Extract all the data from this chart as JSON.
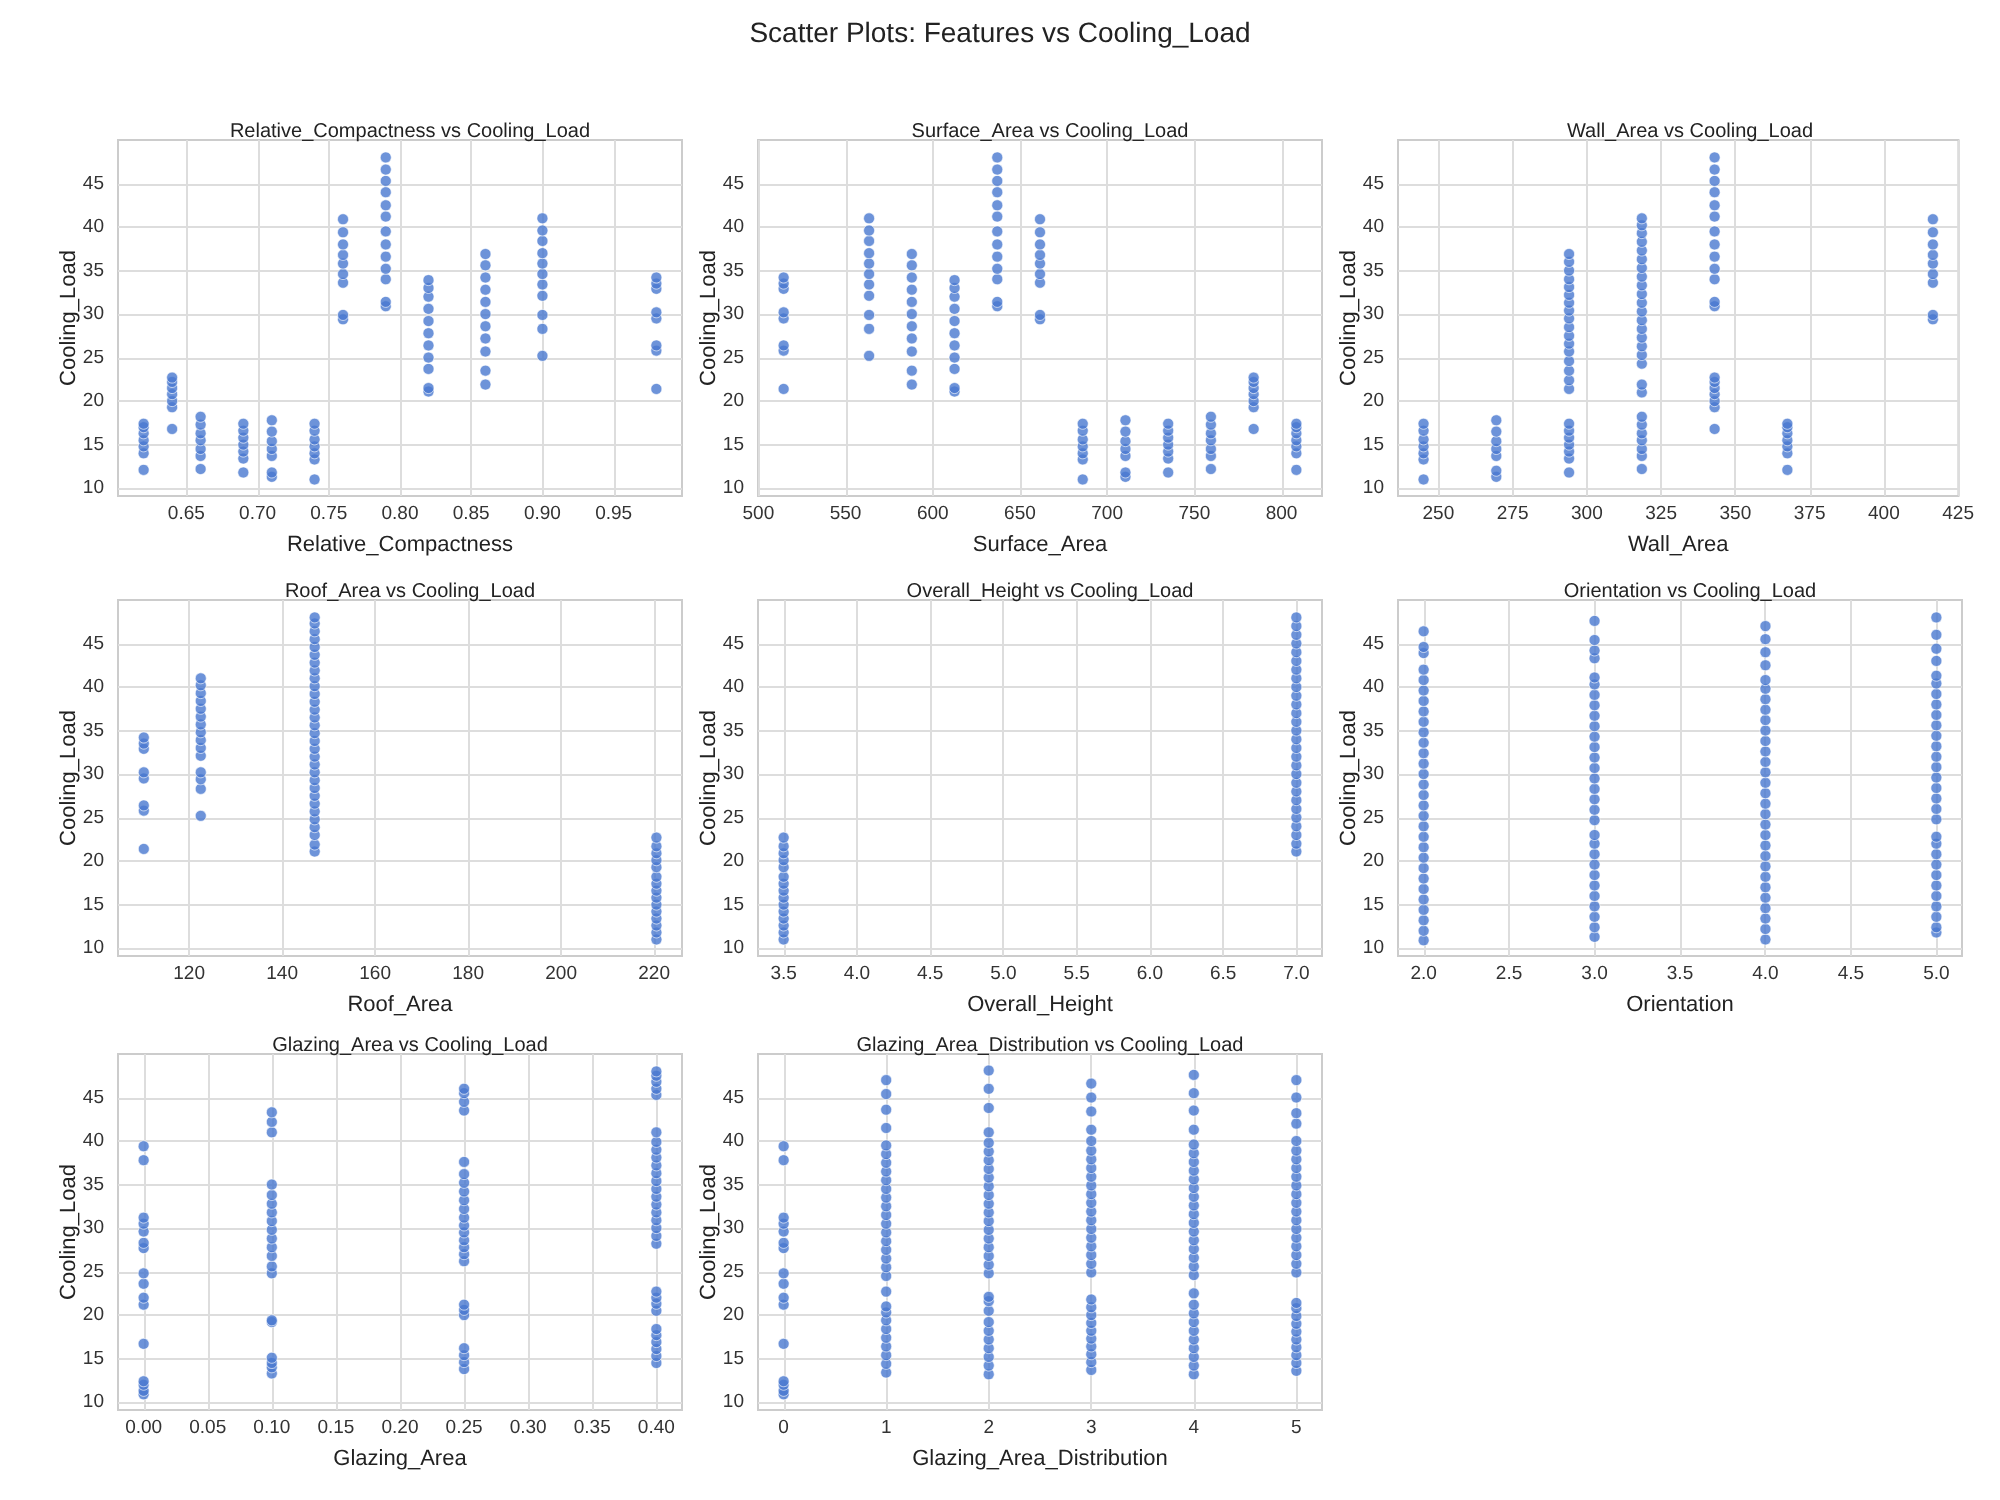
{
  "chart_data": [
    {
      "type": "other",
      "title": "Scatter Plots: Features vs Cooling_Load"
    },
    {
      "type": "scatter",
      "title": "Relative_Compactness vs Cooling_Load",
      "xlabel": "Relative_Compactness",
      "ylabel": "Cooling_Load",
      "color": "#4878d0",
      "marker": "circle",
      "grid": true,
      "xlim": [
        0.602,
        0.998
      ],
      "ylim": [
        9.1,
        50
      ],
      "xticks": [
        0.65,
        {
          "value": 0.7,
          "label": "0.70"
        },
        0.75,
        {
          "value": 0.8,
          "label": "0.80"
        },
        0.85,
        {
          "value": 0.9,
          "label": "0.90"
        },
        0.95
      ],
      "yticks": [
        10,
        15,
        20,
        25,
        30,
        35,
        40,
        45
      ],
      "x": [
        0.62,
        0.62,
        0.62,
        0.62,
        0.62,
        0.62,
        0.62,
        0.64,
        0.64,
        0.64,
        0.64,
        0.64,
        0.64,
        0.64,
        0.66,
        0.66,
        0.66,
        0.66,
        0.66,
        0.66,
        0.66,
        0.69,
        0.69,
        0.69,
        0.69,
        0.69,
        0.69,
        0.69,
        0.71,
        0.71,
        0.71,
        0.71,
        0.71,
        0.71,
        0.71,
        0.74,
        0.74,
        0.74,
        0.74,
        0.74,
        0.74,
        0.74,
        0.76,
        0.76,
        0.76,
        0.76,
        0.76,
        0.76,
        0.76,
        0.76,
        0.76,
        0.79,
        0.79,
        0.79,
        0.79,
        0.79,
        0.79,
        0.79,
        0.79,
        0.79,
        0.79,
        0.79,
        0.79,
        0.79,
        0.82,
        0.82,
        0.82,
        0.82,
        0.82,
        0.82,
        0.82,
        0.82,
        0.82,
        0.82,
        0.82,
        0.86,
        0.86,
        0.86,
        0.86,
        0.86,
        0.86,
        0.86,
        0.86,
        0.86,
        0.86,
        0.86,
        0.9,
        0.9,
        0.9,
        0.9,
        0.9,
        0.9,
        0.9,
        0.9,
        0.9,
        0.9,
        0.9,
        0.98,
        0.98,
        0.98,
        0.98,
        0.98,
        0.98,
        0.98,
        0.98
      ],
      "values": [
        12.1,
        14.0,
        14.8,
        15.5,
        16.3,
        17.0,
        17.4,
        16.8,
        19.3,
        20.0,
        20.8,
        21.5,
        22.2,
        22.7,
        12.2,
        13.7,
        14.5,
        15.5,
        16.3,
        17.3,
        18.2,
        11.8,
        13.4,
        14.2,
        15.0,
        15.8,
        16.6,
        17.4,
        11.3,
        11.8,
        13.7,
        14.5,
        15.4,
        16.5,
        17.8,
        11.0,
        13.3,
        14.0,
        14.8,
        15.6,
        16.6,
        17.4,
        29.4,
        29.9,
        33.6,
        34.6,
        35.8,
        36.8,
        38.0,
        39.4,
        40.9,
        30.9,
        31.4,
        34.0,
        35.2,
        36.6,
        38.0,
        39.5,
        41.2,
        42.5,
        44.0,
        45.3,
        46.6,
        48.0,
        21.1,
        21.5,
        23.7,
        25.0,
        26.4,
        27.8,
        29.2,
        30.6,
        32.0,
        33.0,
        33.9,
        21.9,
        23.5,
        25.7,
        27.2,
        28.6,
        30.0,
        31.4,
        32.8,
        34.2,
        35.6,
        36.9,
        25.2,
        28.3,
        29.9,
        32.1,
        33.4,
        34.6,
        35.8,
        37.0,
        38.4,
        39.6,
        41.0,
        21.4,
        25.8,
        26.4,
        29.5,
        30.2,
        32.9,
        33.5,
        34.2
      ]
    },
    {
      "type": "scatter",
      "title": "Surface_Area vs Cooling_Load",
      "xlabel": "Surface_Area",
      "ylabel": "Cooling_Load",
      "color": "#4878d0",
      "marker": "circle",
      "grid": true,
      "xlim": [
        499.8,
        823.2
      ],
      "ylim": [
        9.1,
        50
      ],
      "xticks": [
        500,
        550,
        600,
        650,
        700,
        750,
        800
      ],
      "yticks": [
        10,
        15,
        20,
        25,
        30,
        35,
        40,
        45
      ],
      "x": [
        514.5,
        514.5,
        514.5,
        514.5,
        514.5,
        514.5,
        514.5,
        514.5,
        563.5,
        563.5,
        563.5,
        563.5,
        563.5,
        563.5,
        563.5,
        563.5,
        563.5,
        563.5,
        563.5,
        588,
        588,
        588,
        588,
        588,
        588,
        588,
        588,
        588,
        588,
        588,
        612.5,
        612.5,
        612.5,
        612.5,
        612.5,
        612.5,
        612.5,
        612.5,
        612.5,
        612.5,
        612.5,
        637,
        637,
        637,
        637,
        637,
        637,
        637,
        637,
        637,
        637,
        637,
        637,
        637,
        661.5,
        661.5,
        661.5,
        661.5,
        661.5,
        661.5,
        661.5,
        661.5,
        661.5,
        686,
        686,
        686,
        686,
        686,
        686,
        686,
        710.5,
        710.5,
        710.5,
        710.5,
        710.5,
        710.5,
        710.5,
        735,
        735,
        735,
        735,
        735,
        735,
        735,
        759.5,
        759.5,
        759.5,
        759.5,
        759.5,
        759.5,
        759.5,
        784,
        784,
        784,
        784,
        784,
        784,
        784,
        808.5,
        808.5,
        808.5,
        808.5,
        808.5,
        808.5,
        808.5
      ],
      "values": [
        21.4,
        25.8,
        26.4,
        29.5,
        30.2,
        32.9,
        33.5,
        34.2,
        25.2,
        28.3,
        29.9,
        32.1,
        33.4,
        34.6,
        35.8,
        37.0,
        38.4,
        39.6,
        41.0,
        21.9,
        23.5,
        25.7,
        27.2,
        28.6,
        30.0,
        31.4,
        32.8,
        34.2,
        35.6,
        36.9,
        21.1,
        21.5,
        23.7,
        25.0,
        26.4,
        27.8,
        29.2,
        30.6,
        32.0,
        33.0,
        33.9,
        30.9,
        31.4,
        34.0,
        35.2,
        36.6,
        38.0,
        39.5,
        41.2,
        42.5,
        44.0,
        45.3,
        46.6,
        48.0,
        29.4,
        29.9,
        33.6,
        34.6,
        35.8,
        36.8,
        38.0,
        39.4,
        40.9,
        11.0,
        13.3,
        14.0,
        14.8,
        15.6,
        16.6,
        17.4,
        11.3,
        11.8,
        13.7,
        14.5,
        15.4,
        16.5,
        17.8,
        11.8,
        13.4,
        14.2,
        15.0,
        15.8,
        16.6,
        17.4,
        12.2,
        13.7,
        14.5,
        15.5,
        16.3,
        17.3,
        18.2,
        16.8,
        19.3,
        20.0,
        20.8,
        21.5,
        22.2,
        22.7,
        12.1,
        14.0,
        14.8,
        15.5,
        16.3,
        17.0,
        17.4
      ]
    },
    {
      "type": "scatter",
      "title": "Wall_Area vs Cooling_Load",
      "xlabel": "Wall_Area",
      "ylabel": "Cooling_Load",
      "color": "#4878d0",
      "marker": "circle",
      "grid": true,
      "xlim": [
        236.4,
        425.1
      ],
      "ylim": [
        9.1,
        50
      ],
      "xticks": [
        250,
        275,
        300,
        325,
        350,
        375,
        400,
        425
      ],
      "yticks": [
        10,
        15,
        20,
        25,
        30,
        35,
        40,
        45
      ],
      "x": [
        245,
        245,
        245,
        245,
        245,
        245,
        245,
        269.5,
        269.5,
        269.5,
        269.5,
        269.5,
        269.5,
        269.5,
        294,
        294,
        294,
        294,
        294,
        294,
        294,
        294,
        294,
        294,
        294,
        294,
        294,
        294,
        294,
        294,
        294,
        294,
        294,
        294,
        294,
        294,
        294,
        294,
        318.5,
        318.5,
        318.5,
        318.5,
        318.5,
        318.5,
        318.5,
        318.5,
        318.5,
        318.5,
        318.5,
        318.5,
        318.5,
        318.5,
        318.5,
        318.5,
        318.5,
        318.5,
        318.5,
        318.5,
        318.5,
        318.5,
        318.5,
        318.5,
        318.5,
        318.5,
        318.5,
        343,
        343,
        343,
        343,
        343,
        343,
        343,
        343,
        343,
        343,
        343,
        343,
        343,
        343,
        343,
        343,
        343,
        343,
        343,
        343,
        367.5,
        367.5,
        367.5,
        367.5,
        367.5,
        367.5,
        367.5,
        416.5,
        416.5,
        416.5,
        416.5,
        416.5,
        416.5,
        416.5,
        416.5,
        416.5
      ],
      "values": [
        11.0,
        13.3,
        14.0,
        14.8,
        15.6,
        16.6,
        17.4,
        11.3,
        12.0,
        13.7,
        14.5,
        15.4,
        16.5,
        17.8,
        11.8,
        13.4,
        14.2,
        15.0,
        15.8,
        16.6,
        17.4,
        21.4,
        22.4,
        23.5,
        24.6,
        25.7,
        26.6,
        27.5,
        28.5,
        29.5,
        30.4,
        31.3,
        32.2,
        33.1,
        34.0,
        35.0,
        36.0,
        36.9,
        12.2,
        13.7,
        14.5,
        15.5,
        16.3,
        17.3,
        18.2,
        21.0,
        21.9,
        24.3,
        25.3,
        26.3,
        27.3,
        28.3,
        29.3,
        30.3,
        31.3,
        32.3,
        33.3,
        34.3,
        35.3,
        36.3,
        37.3,
        38.3,
        39.3,
        40.2,
        41.0,
        16.8,
        19.3,
        20.0,
        20.8,
        21.5,
        22.2,
        22.7,
        30.9,
        31.4,
        34.0,
        35.2,
        36.6,
        38.0,
        39.5,
        41.2,
        42.5,
        44.0,
        45.3,
        46.6,
        48.0,
        12.1,
        14.0,
        14.8,
        15.5,
        16.3,
        17.0,
        17.4,
        29.4,
        29.9,
        33.6,
        34.6,
        35.8,
        36.8,
        38.0,
        39.4,
        40.9
      ]
    },
    {
      "type": "scatter",
      "title": "Roof_Area vs Cooling_Load",
      "xlabel": "Roof_Area",
      "ylabel": "Cooling_Load",
      "color": "#4878d0",
      "marker": "circle",
      "grid": true,
      "xlim": [
        104.7,
        226
      ],
      "ylim": [
        9.1,
        50
      ],
      "xticks": [
        120,
        140,
        160,
        180,
        200,
        220
      ],
      "yticks": [
        10,
        15,
        20,
        25,
        30,
        35,
        40,
        45
      ],
      "x": [
        110.25,
        110.25,
        110.25,
        110.25,
        110.25,
        110.25,
        110.25,
        110.25,
        122.5,
        122.5,
        122.5,
        122.5,
        122.5,
        122.5,
        122.5,
        122.5,
        122.5,
        122.5,
        122.5,
        122.5,
        122.5,
        122.5,
        122.5,
        147,
        147,
        147,
        147,
        147,
        147,
        147,
        147,
        147,
        147,
        147,
        147,
        147,
        147,
        147,
        147,
        147,
        147,
        147,
        147,
        147,
        147,
        147,
        147,
        147,
        147,
        147,
        147,
        147,
        147,
        147,
        220.5,
        220.5,
        220.5,
        220.5,
        220.5,
        220.5,
        220.5,
        220.5,
        220.5,
        220.5,
        220.5,
        220.5,
        220.5,
        220.5,
        220.5
      ],
      "values": [
        21.4,
        25.8,
        26.4,
        29.5,
        30.2,
        32.9,
        33.5,
        34.2,
        25.2,
        28.3,
        29.4,
        30.2,
        32.1,
        33.0,
        33.9,
        34.8,
        35.7,
        36.6,
        37.5,
        38.4,
        39.3,
        40.2,
        41.0,
        21.1,
        21.9,
        23.0,
        23.9,
        24.8,
        25.7,
        26.6,
        27.5,
        28.4,
        29.3,
        30.2,
        31.1,
        32.0,
        32.9,
        33.8,
        34.7,
        35.6,
        36.5,
        37.4,
        38.3,
        39.2,
        40.1,
        41.0,
        41.9,
        42.8,
        43.7,
        44.6,
        45.5,
        46.4,
        47.3,
        48.0,
        11.0,
        11.8,
        12.6,
        13.4,
        14.2,
        15.0,
        15.8,
        16.6,
        17.4,
        18.2,
        19.3,
        20.1,
        20.9,
        21.7,
        22.7
      ]
    },
    {
      "type": "scatter",
      "title": "Overall_Height vs Cooling_Load",
      "xlabel": "Overall_Height",
      "ylabel": "Cooling_Load",
      "color": "#4878d0",
      "marker": "circle",
      "grid": true,
      "xlim": [
        3.325,
        7.175
      ],
      "ylim": [
        9.1,
        50
      ],
      "xticks": [
        3.5,
        {
          "value": 4,
          "label": "4.0"
        },
        4.5,
        {
          "value": 5,
          "label": "5.0"
        },
        5.5,
        {
          "value": 6,
          "label": "6.0"
        },
        6.5,
        {
          "value": 7,
          "label": "7.0"
        }
      ],
      "yticks": [
        10,
        15,
        20,
        25,
        30,
        35,
        40,
        45
      ],
      "x": [
        3.5,
        3.5,
        3.5,
        3.5,
        3.5,
        3.5,
        3.5,
        3.5,
        3.5,
        3.5,
        3.5,
        3.5,
        3.5,
        3.5,
        3.5,
        7,
        7,
        7,
        7,
        7,
        7,
        7,
        7,
        7,
        7,
        7,
        7,
        7,
        7,
        7,
        7,
        7,
        7,
        7,
        7,
        7,
        7,
        7,
        7,
        7,
        7,
        7,
        7
      ],
      "values": [
        11.0,
        11.8,
        12.6,
        13.4,
        14.2,
        15.0,
        15.8,
        16.6,
        17.4,
        18.2,
        19.3,
        20.1,
        20.9,
        21.7,
        22.7,
        21.1,
        22.0,
        23.0,
        24.0,
        25.0,
        26.0,
        27.0,
        28.0,
        29.0,
        30.0,
        31.0,
        32.0,
        33.0,
        34.0,
        35.0,
        36.0,
        37.0,
        38.0,
        39.0,
        40.0,
        41.0,
        42.0,
        43.0,
        44.0,
        45.0,
        46.0,
        47.0,
        48.0
      ]
    },
    {
      "type": "scatter",
      "title": "Orientation vs Cooling_Load",
      "xlabel": "Orientation",
      "ylabel": "Cooling_Load",
      "color": "#4878d0",
      "marker": "circle",
      "grid": true,
      "xlim": [
        1.85,
        5.15
      ],
      "ylim": [
        9.1,
        50
      ],
      "xticks": [
        {
          "value": 2,
          "label": "2.0"
        },
        2.5,
        {
          "value": 3,
          "label": "3.0"
        },
        3.5,
        {
          "value": 4,
          "label": "4.0"
        },
        4.5,
        {
          "value": 5,
          "label": "5.0"
        }
      ],
      "yticks": [
        10,
        15,
        20,
        25,
        30,
        35,
        40,
        45
      ],
      "x": [
        2,
        2,
        2,
        2,
        2,
        2,
        2,
        2,
        2,
        2,
        2,
        2,
        2,
        2,
        2,
        2,
        2,
        2,
        2,
        2,
        2,
        2,
        2,
        2,
        2,
        2,
        2,
        2,
        2,
        2,
        3,
        3,
        3,
        3,
        3,
        3,
        3,
        3,
        3,
        3,
        3,
        3,
        3,
        3,
        3,
        3,
        3,
        3,
        3,
        3,
        3,
        3,
        3,
        3,
        3,
        3,
        3,
        3,
        3,
        3,
        4,
        4,
        4,
        4,
        4,
        4,
        4,
        4,
        4,
        4,
        4,
        4,
        4,
        4,
        4,
        4,
        4,
        4,
        4,
        4,
        4,
        4,
        4,
        4,
        4,
        4,
        4,
        4,
        4,
        4,
        5,
        5,
        5,
        5,
        5,
        5,
        5,
        5,
        5,
        5,
        5,
        5,
        5,
        5,
        5,
        5,
        5,
        5,
        5,
        5,
        5,
        5,
        5,
        5,
        5,
        5,
        5,
        5,
        5,
        5
      ],
      "values": [
        10.9,
        12.0,
        13.2,
        14.4,
        15.6,
        16.8,
        18.0,
        19.2,
        20.4,
        21.6,
        22.8,
        24.0,
        25.2,
        26.4,
        27.6,
        28.8,
        30.0,
        31.2,
        32.4,
        33.6,
        34.8,
        36.0,
        37.2,
        38.4,
        39.6,
        40.8,
        42.0,
        43.9,
        44.6,
        46.4,
        11.3,
        12.4,
        13.6,
        14.8,
        16.0,
        17.2,
        18.4,
        19.6,
        20.8,
        22.0,
        23.0,
        24.7,
        25.9,
        27.1,
        28.3,
        29.5,
        30.7,
        31.9,
        33.1,
        34.3,
        35.5,
        36.7,
        37.9,
        39.1,
        40.3,
        41.1,
        43.3,
        44.2,
        45.4,
        47.6,
        11.0,
        12.2,
        13.4,
        14.6,
        15.8,
        17.0,
        18.2,
        19.4,
        20.6,
        21.8,
        23.0,
        24.2,
        25.4,
        26.6,
        27.8,
        29.0,
        30.2,
        31.4,
        32.6,
        33.8,
        35.0,
        36.2,
        37.4,
        38.6,
        39.8,
        40.8,
        42.5,
        44.0,
        45.5,
        47.0,
        11.8,
        12.4,
        13.6,
        14.8,
        16.0,
        17.2,
        18.4,
        19.6,
        20.8,
        22.0,
        22.8,
        24.8,
        26.0,
        27.2,
        28.4,
        29.6,
        30.8,
        32.0,
        33.2,
        34.4,
        35.6,
        36.8,
        38.0,
        39.2,
        40.4,
        41.3,
        43.0,
        44.4,
        46.0,
        48.0
      ]
    },
    {
      "type": "scatter",
      "title": "Glazing_Area vs Cooling_Load",
      "xlabel": "Glazing_Area",
      "ylabel": "Cooling_Load",
      "color": "#4878d0",
      "marker": "circle",
      "grid": true,
      "xlim": [
        -0.02,
        0.42
      ],
      "ylim": [
        9.1,
        50
      ],
      "xticks": [
        {
          "value": 0,
          "label": "0.00"
        },
        0.05,
        {
          "value": 0.1,
          "label": "0.10"
        },
        0.15,
        {
          "value": 0.2,
          "label": "0.20"
        },
        0.25,
        {
          "value": 0.3,
          "label": "0.30"
        },
        0.35,
        {
          "value": 0.4,
          "label": "0.40"
        }
      ],
      "yticks": [
        10,
        15,
        20,
        25,
        30,
        35,
        40,
        45
      ],
      "x": [
        0,
        0,
        0,
        0,
        0,
        0,
        0,
        0,
        0,
        0,
        0,
        0,
        0,
        0,
        0,
        0,
        0.1,
        0.1,
        0.1,
        0.1,
        0.1,
        0.1,
        0.1,
        0.1,
        0.1,
        0.1,
        0.1,
        0.1,
        0.1,
        0.1,
        0.1,
        0.1,
        0.1,
        0.1,
        0.1,
        0.1,
        0.25,
        0.25,
        0.25,
        0.25,
        0.25,
        0.25,
        0.25,
        0.25,
        0.25,
        0.25,
        0.25,
        0.25,
        0.25,
        0.25,
        0.25,
        0.25,
        0.25,
        0.25,
        0.25,
        0.25,
        0.25,
        0.25,
        0.25,
        0.25,
        0.4,
        0.4,
        0.4,
        0.4,
        0.4,
        0.4,
        0.4,
        0.4,
        0.4,
        0.4,
        0.4,
        0.4,
        0.4,
        0.4,
        0.4,
        0.4,
        0.4,
        0.4,
        0.4,
        0.4,
        0.4,
        0.4,
        0.4,
        0.4,
        0.4,
        0.4,
        0.4,
        0.4,
        0.4,
        0.4
      ],
      "values": [
        10.9,
        11.3,
        12.0,
        12.4,
        16.7,
        21.2,
        22.0,
        23.6,
        24.8,
        27.7,
        28.3,
        29.6,
        30.5,
        31.2,
        37.8,
        39.4,
        13.3,
        14.0,
        14.5,
        15.1,
        19.2,
        19.4,
        24.8,
        25.6,
        26.8,
        27.8,
        28.8,
        29.8,
        30.8,
        31.8,
        32.8,
        33.8,
        35.0,
        41.0,
        42.2,
        43.3,
        13.8,
        14.6,
        15.4,
        16.2,
        20.0,
        20.6,
        21.2,
        26.2,
        27.0,
        27.8,
        28.6,
        29.5,
        30.3,
        31.2,
        32.2,
        33.2,
        34.2,
        35.2,
        36.2,
        37.6,
        43.5,
        44.5,
        45.5,
        46.0,
        14.5,
        15.3,
        16.1,
        16.9,
        17.7,
        18.4,
        20.5,
        21.3,
        22.0,
        22.7,
        28.2,
        29.1,
        30.0,
        30.9,
        31.8,
        32.7,
        33.6,
        34.5,
        35.4,
        36.3,
        37.2,
        38.1,
        39.0,
        39.9,
        41.0,
        45.3,
        46.0,
        46.8,
        47.5,
        48.0
      ]
    },
    {
      "type": "scatter",
      "title": "Glazing_Area_Distribution vs Cooling_Load",
      "xlabel": "Glazing_Area_Distribution",
      "ylabel": "Cooling_Load",
      "color": "#4878d0",
      "marker": "circle",
      "grid": true,
      "xlim": [
        -0.25,
        5.25
      ],
      "ylim": [
        9.1,
        50
      ],
      "xticks": [
        0,
        1,
        2,
        3,
        4,
        5
      ],
      "yticks": [
        10,
        15,
        20,
        25,
        30,
        35,
        40,
        45
      ],
      "x": [
        0,
        0,
        0,
        0,
        0,
        0,
        0,
        0,
        0,
        0,
        0,
        0,
        0,
        0,
        0,
        0,
        1,
        1,
        1,
        1,
        1,
        1,
        1,
        1,
        1,
        1,
        1,
        1,
        1,
        1,
        1,
        1,
        1,
        1,
        1,
        1,
        1,
        1,
        1,
        1,
        1,
        1,
        1,
        1,
        1,
        1,
        2,
        2,
        2,
        2,
        2,
        2,
        2,
        2,
        2,
        2,
        2,
        2,
        2,
        2,
        2,
        2,
        2,
        2,
        2,
        2,
        2,
        2,
        2,
        2,
        2,
        2,
        2,
        2,
        2,
        2,
        3,
        3,
        3,
        3,
        3,
        3,
        3,
        3,
        3,
        3,
        3,
        3,
        3,
        3,
        3,
        3,
        3,
        3,
        3,
        3,
        3,
        3,
        3,
        3,
        3,
        3,
        3,
        3,
        3,
        3,
        4,
        4,
        4,
        4,
        4,
        4,
        4,
        4,
        4,
        4,
        4,
        4,
        4,
        4,
        4,
        4,
        4,
        4,
        4,
        4,
        4,
        4,
        4,
        4,
        4,
        4,
        4,
        4,
        4,
        4,
        5,
        5,
        5,
        5,
        5,
        5,
        5,
        5,
        5,
        5,
        5,
        5,
        5,
        5,
        5,
        5,
        5,
        5,
        5,
        5,
        5,
        5,
        5,
        5,
        5,
        5,
        5,
        5,
        5,
        5
      ],
      "values": [
        10.9,
        11.3,
        12.0,
        12.4,
        16.7,
        21.2,
        22.0,
        23.6,
        24.8,
        27.7,
        28.3,
        29.6,
        30.5,
        31.2,
        37.8,
        39.4,
        13.4,
        14.4,
        15.4,
        16.4,
        17.4,
        18.4,
        19.4,
        20.3,
        21.0,
        22.7,
        24.5,
        25.5,
        26.5,
        27.5,
        28.5,
        29.5,
        30.5,
        31.5,
        32.5,
        33.5,
        34.5,
        35.5,
        36.5,
        37.5,
        38.5,
        39.5,
        41.5,
        43.6,
        45.4,
        47.0,
        13.2,
        14.2,
        15.2,
        16.2,
        17.2,
        18.2,
        19.2,
        20.5,
        21.6,
        22.1,
        24.8,
        25.8,
        26.8,
        27.8,
        28.8,
        29.8,
        30.8,
        31.8,
        32.8,
        33.8,
        34.8,
        35.8,
        36.8,
        37.8,
        38.8,
        39.8,
        41.0,
        43.8,
        46.0,
        48.1,
        13.7,
        14.6,
        15.5,
        16.4,
        17.3,
        18.2,
        19.1,
        20.0,
        20.9,
        21.8,
        24.9,
        25.9,
        26.9,
        27.9,
        28.9,
        29.9,
        30.9,
        31.9,
        32.9,
        33.9,
        34.9,
        35.9,
        36.9,
        37.9,
        38.9,
        40.0,
        41.3,
        43.4,
        45.0,
        46.6,
        13.2,
        14.2,
        15.2,
        16.2,
        17.2,
        18.2,
        19.2,
        20.2,
        21.2,
        22.5,
        24.6,
        25.6,
        26.6,
        27.6,
        28.6,
        29.6,
        30.6,
        31.6,
        32.6,
        33.6,
        34.6,
        35.6,
        36.6,
        37.6,
        38.6,
        39.6,
        41.3,
        43.5,
        45.5,
        47.6,
        13.6,
        14.5,
        15.4,
        16.3,
        17.2,
        18.1,
        19.0,
        19.9,
        20.8,
        21.4,
        24.9,
        25.9,
        26.9,
        27.9,
        28.9,
        29.9,
        30.9,
        31.9,
        32.9,
        33.9,
        34.9,
        35.9,
        36.9,
        37.9,
        38.9,
        40.0,
        42.0,
        43.2,
        45.0,
        47.0
      ]
    }
  ]
}
